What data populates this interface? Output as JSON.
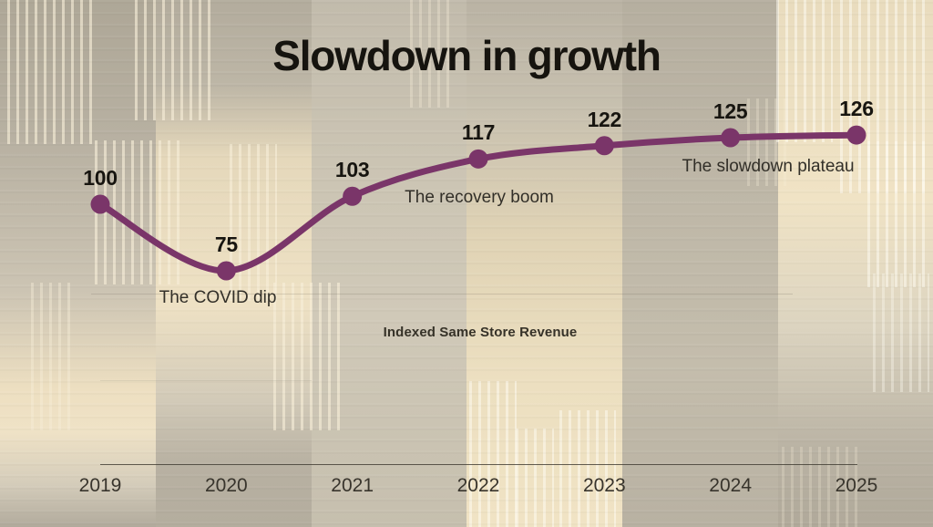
{
  "title": "Slowdown in growth",
  "caption": "Indexed Same Store Revenue",
  "annotations": {
    "covid": "The COVID dip",
    "recovery": "The recovery boom",
    "plateau": "The slowdown plateau"
  },
  "chart_data": {
    "type": "line",
    "title": "Slowdown in growth",
    "categories": [
      "2019",
      "2020",
      "2021",
      "2022",
      "2023",
      "2024",
      "2025"
    ],
    "values": [
      100,
      75,
      103,
      117,
      122,
      125,
      126
    ],
    "series_name": "Indexed Same Store Revenue",
    "annotations": [
      "The COVID dip",
      "The recovery boom",
      "The slowdown plateau"
    ],
    "line_color": "#7a3569",
    "marker_color": "#7a3569",
    "xlabel": "",
    "ylabel": "",
    "grid": false,
    "legend": false,
    "x_axis_line": true,
    "value_labels_shown": true
  },
  "colors": {
    "line": "#7a3569",
    "title_text": "#16140f",
    "annotation_text": "#322f28",
    "axis_line": "#403b32"
  }
}
